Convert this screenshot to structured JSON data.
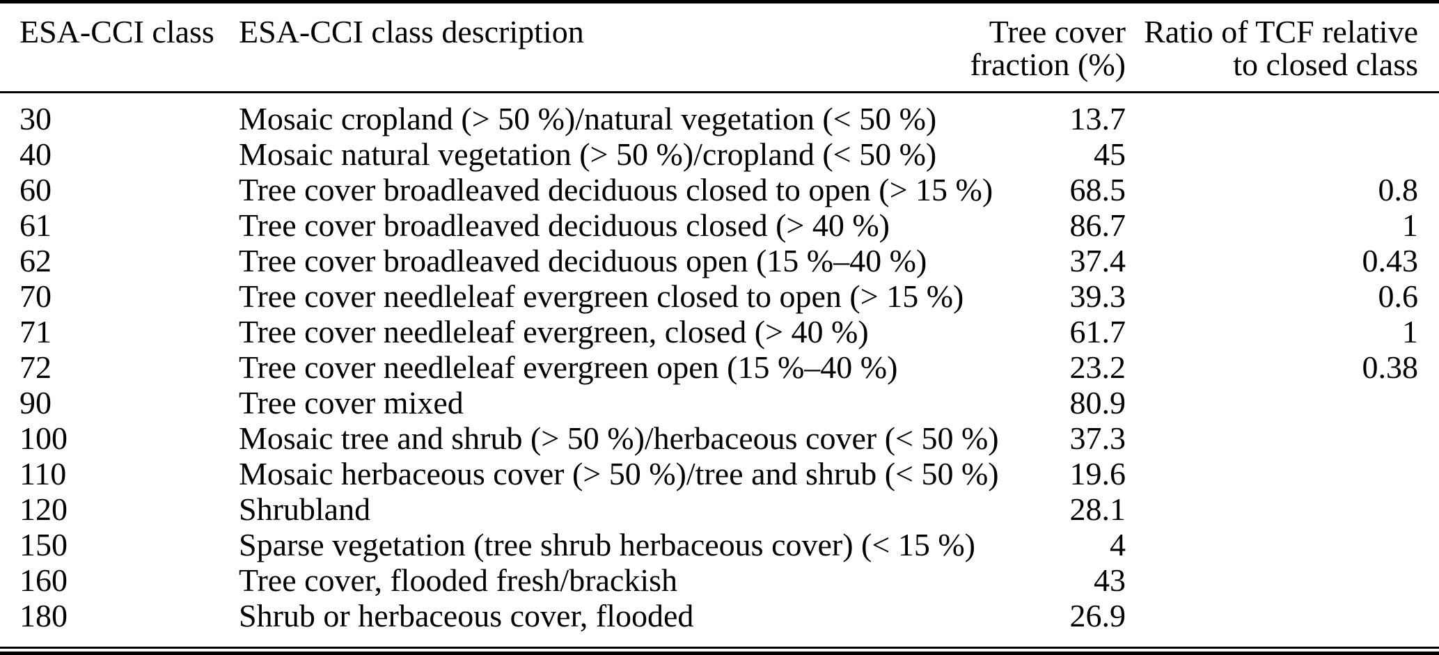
{
  "table": {
    "columns": [
      {
        "line1": "ESA-CCI class",
        "line2": ""
      },
      {
        "line1": "ESA-CCI class description",
        "line2": ""
      },
      {
        "line1": "Tree cover",
        "line2": "fraction (%)"
      },
      {
        "line1": "Ratio of TCF relative",
        "line2": "to closed class"
      }
    ],
    "rows": [
      {
        "class": "30",
        "description": "Mosaic cropland (> 50 %)/natural vegetation (< 50 %)",
        "tcf": "13.7",
        "ratio": ""
      },
      {
        "class": "40",
        "description": "Mosaic natural vegetation (> 50 %)/cropland (< 50 %)",
        "tcf": "45",
        "ratio": ""
      },
      {
        "class": "60",
        "description": "Tree cover broadleaved deciduous closed to open (> 15 %)",
        "tcf": "68.5",
        "ratio": "0.8"
      },
      {
        "class": "61",
        "description": "Tree cover broadleaved deciduous closed (> 40 %)",
        "tcf": "86.7",
        "ratio": "1"
      },
      {
        "class": "62",
        "description": "Tree cover broadleaved deciduous open (15 %–40 %)",
        "tcf": "37.4",
        "ratio": "0.43"
      },
      {
        "class": "70",
        "description": "Tree cover needleleaf evergreen closed to open (> 15 %)",
        "tcf": "39.3",
        "ratio": "0.6"
      },
      {
        "class": "71",
        "description": "Tree cover needleleaf evergreen, closed (> 40 %)",
        "tcf": "61.7",
        "ratio": "1"
      },
      {
        "class": "72",
        "description": "Tree cover needleleaf evergreen open (15 %–40 %)",
        "tcf": "23.2",
        "ratio": "0.38"
      },
      {
        "class": "90",
        "description": "Tree cover mixed",
        "tcf": "80.9",
        "ratio": ""
      },
      {
        "class": "100",
        "description": "Mosaic tree and shrub (> 50 %)/herbaceous cover (< 50 %)",
        "tcf": "37.3",
        "ratio": ""
      },
      {
        "class": "110",
        "description": "Mosaic herbaceous cover (> 50 %)/tree and shrub (< 50 %)",
        "tcf": "19.6",
        "ratio": ""
      },
      {
        "class": "120",
        "description": "Shrubland",
        "tcf": "28.1",
        "ratio": ""
      },
      {
        "class": "150",
        "description": "Sparse vegetation (tree shrub herbaceous cover) (< 15 %)",
        "tcf": "4",
        "ratio": ""
      },
      {
        "class": "160",
        "description": "Tree cover, flooded fresh/brackish",
        "tcf": "43",
        "ratio": ""
      },
      {
        "class": "180",
        "description": "Shrub or herbaceous cover, flooded",
        "tcf": "26.9",
        "ratio": ""
      }
    ],
    "colors": {
      "text": "#000000",
      "background": "#ffffff",
      "rule": "#000000"
    }
  }
}
